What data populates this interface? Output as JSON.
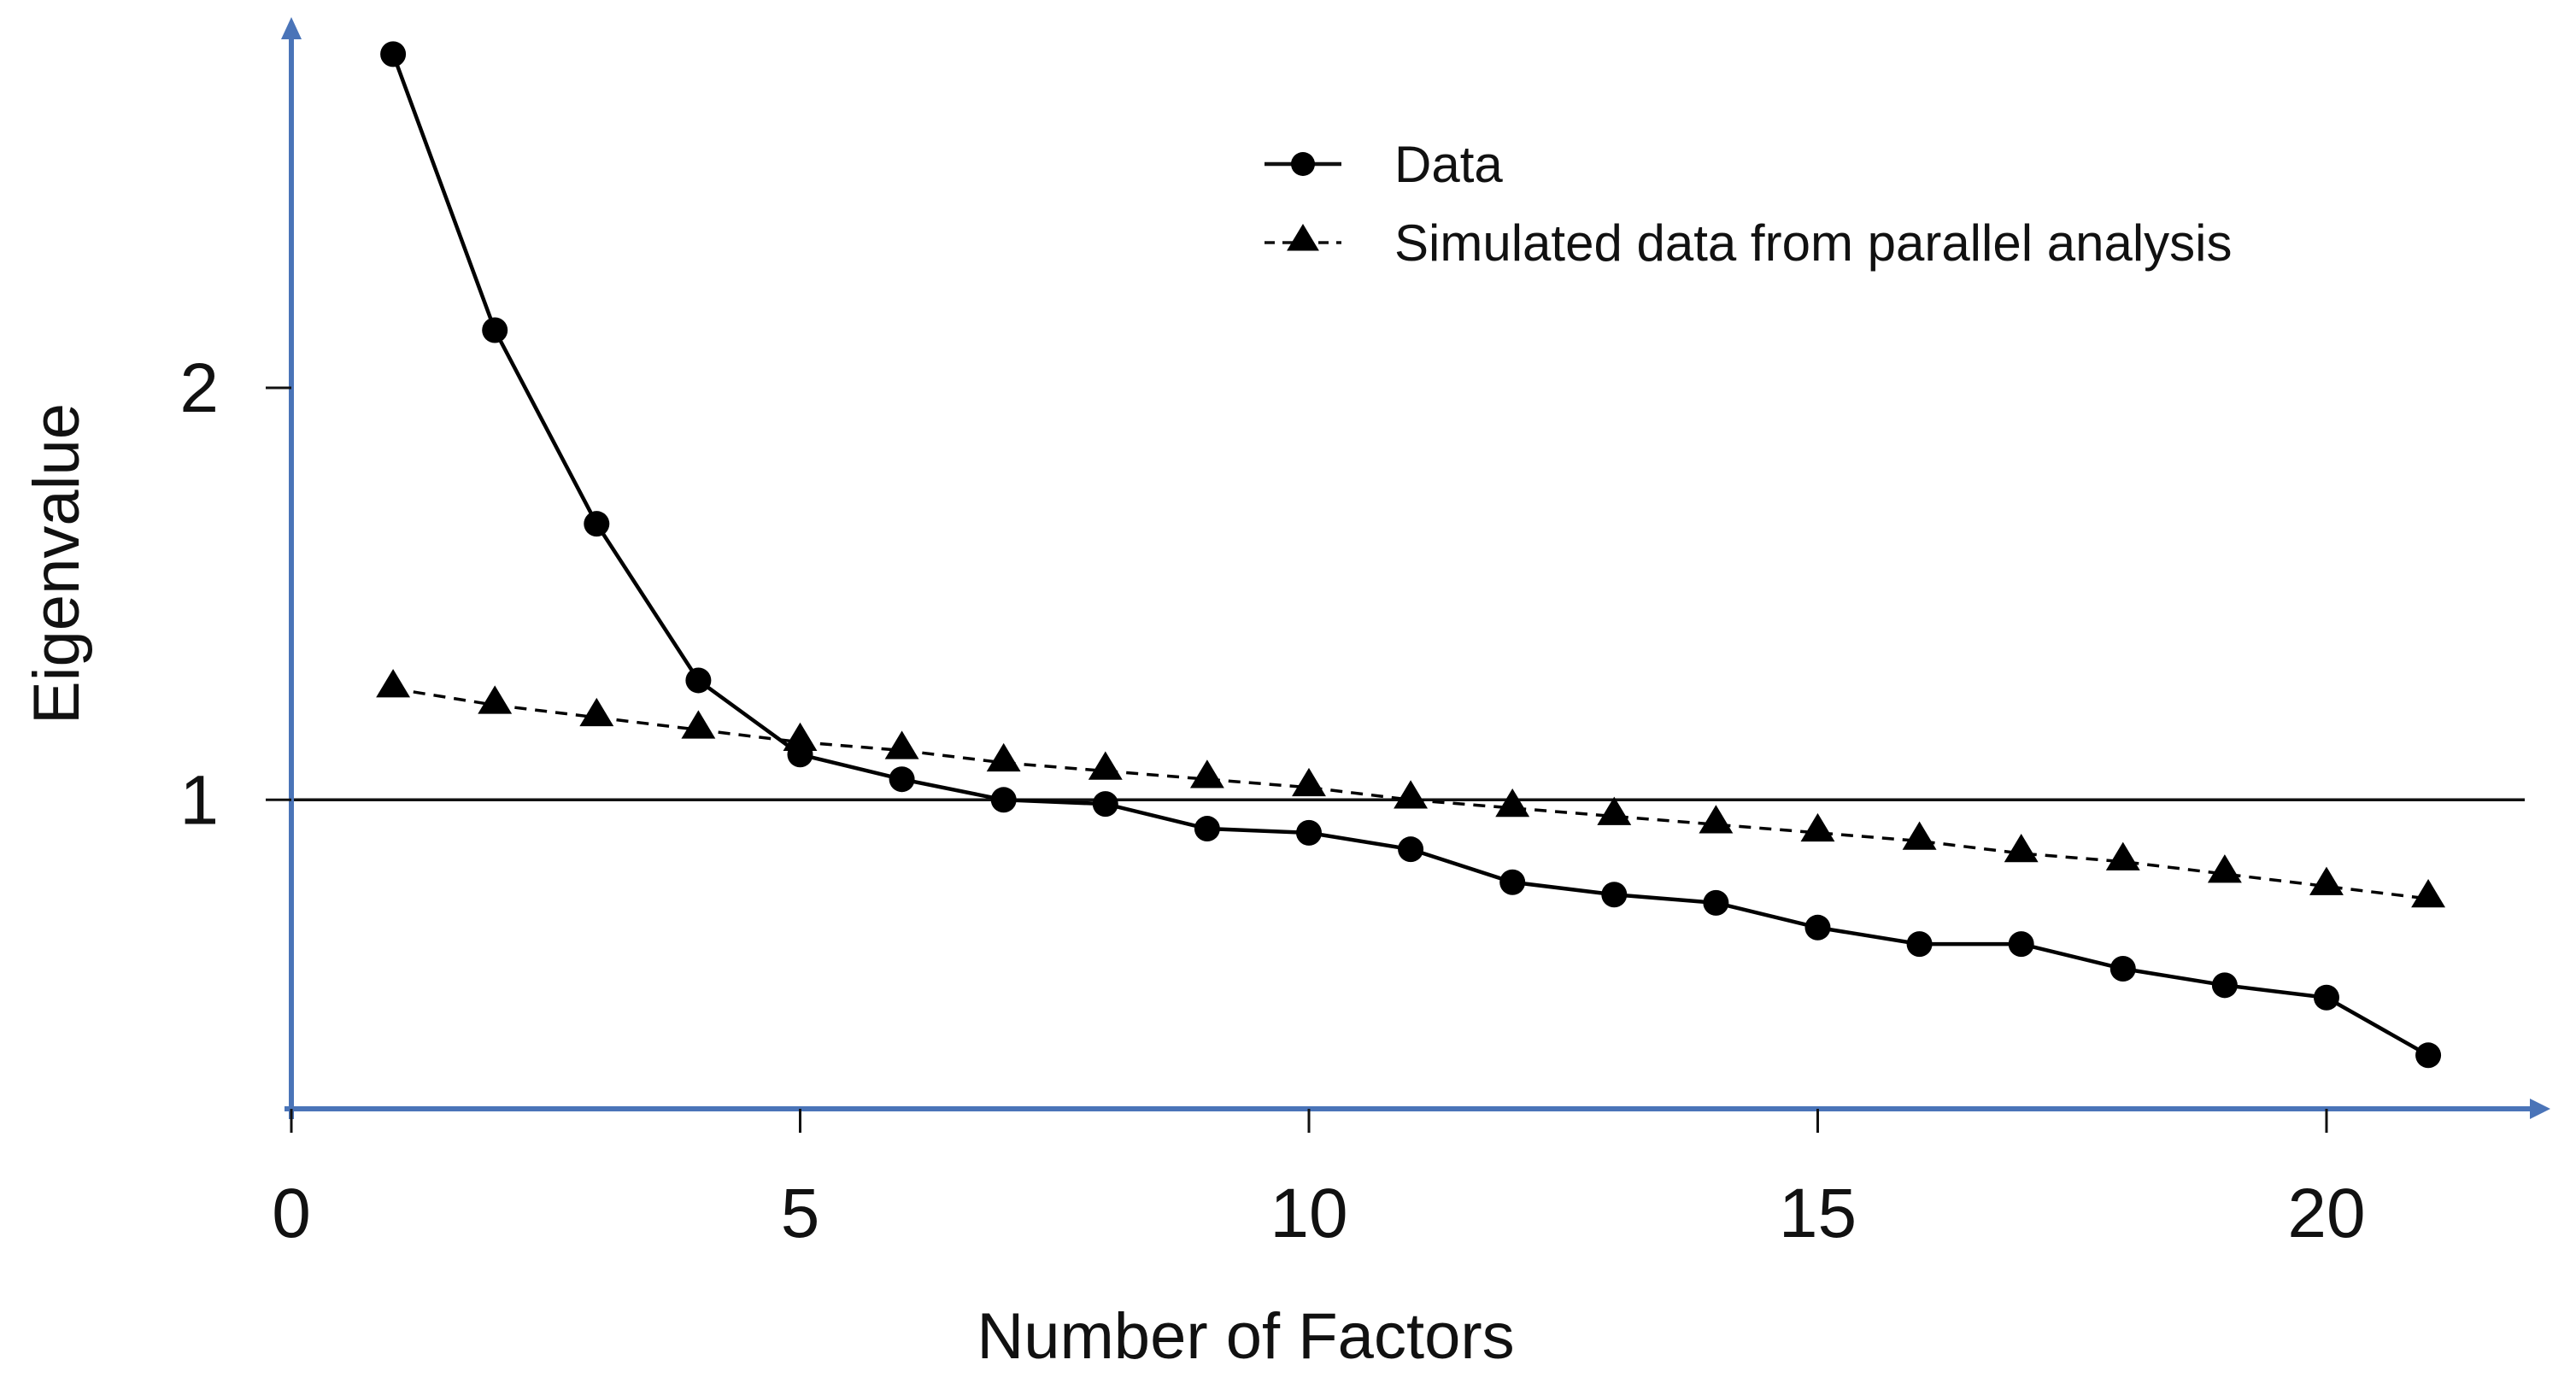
{
  "chart_data": {
    "type": "line",
    "title": "",
    "xlabel": "Number of Factors",
    "ylabel": "Eigenvalue",
    "xlim": [
      0,
      22.2
    ],
    "ylim": [
      0.25,
      2.9
    ],
    "x_ticks": [
      0,
      5,
      10,
      15,
      20
    ],
    "y_ticks": [
      1,
      2
    ],
    "x_tick_labels": [
      "0",
      "5",
      "10",
      "15",
      "20"
    ],
    "y_tick_labels": [
      "1",
      "2"
    ],
    "reference_line": {
      "y": 1
    },
    "legend_position": "top-right",
    "axis_color": "#4a74b8",
    "series_color": "#000000",
    "x": [
      1,
      2,
      3,
      4,
      5,
      6,
      7,
      8,
      9,
      10,
      11,
      12,
      13,
      14,
      15,
      16,
      17,
      18,
      19,
      20,
      21
    ],
    "series": [
      {
        "name": "Data",
        "marker": "circle",
        "line": "solid",
        "values": [
          2.81,
          2.14,
          1.67,
          1.29,
          1.11,
          1.05,
          1.0,
          0.99,
          0.93,
          0.92,
          0.88,
          0.8,
          0.77,
          0.75,
          0.69,
          0.65,
          0.65,
          0.59,
          0.55,
          0.52,
          0.38
        ]
      },
      {
        "name": "Simulated data from parallel analysis",
        "marker": "triangle",
        "line": "dashed",
        "values": [
          1.27,
          1.23,
          1.2,
          1.17,
          1.14,
          1.12,
          1.09,
          1.07,
          1.05,
          1.03,
          1.0,
          0.98,
          0.96,
          0.94,
          0.92,
          0.9,
          0.87,
          0.85,
          0.82,
          0.79,
          0.76
        ]
      }
    ]
  }
}
